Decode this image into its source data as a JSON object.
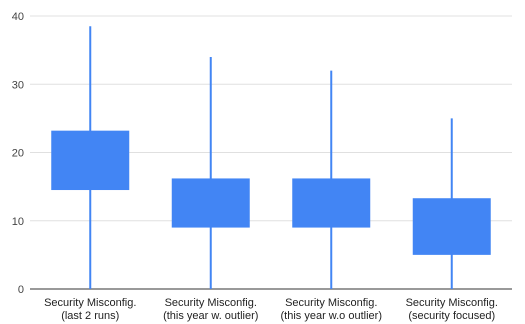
{
  "chart_data": {
    "type": "box",
    "title": "",
    "xlabel": "",
    "ylabel": "",
    "ylim": [
      0,
      40
    ],
    "yticks": [
      0,
      10,
      20,
      30,
      40
    ],
    "grid": true,
    "box_color": "#4285f4",
    "categories": [
      [
        "Security Misconfig.",
        "(last 2 runs)"
      ],
      [
        "Security Misconfig.",
        "(this year w. outlier)"
      ],
      [
        "Security Misconfig.",
        "(this year w.o outlier)"
      ],
      [
        "Security Misconfig.",
        "(security focused)"
      ]
    ],
    "boxes": [
      {
        "min": 0,
        "q1": 14.5,
        "q3": 23.2,
        "max": 38.5
      },
      {
        "min": 0,
        "q1": 9,
        "q3": 16.2,
        "max": 34
      },
      {
        "min": 0,
        "q1": 9,
        "q3": 16.2,
        "max": 32
      },
      {
        "min": 0,
        "q1": 5,
        "q3": 13.3,
        "max": 25
      }
    ]
  }
}
